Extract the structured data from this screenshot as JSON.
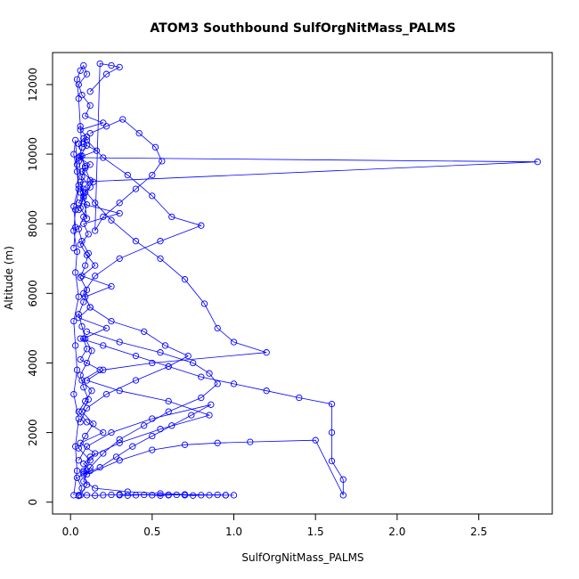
{
  "chart_data": {
    "type": "line",
    "title": "ATOM3 Southbound SulfOrgNitMass_PALMS",
    "xlabel": "SulfOrgNitMass_PALMS",
    "ylabel": "Altitude (m)",
    "xlim": [
      -0.11,
      2.95
    ],
    "ylim": [
      -340,
      12920
    ],
    "xticks": [
      0.0,
      0.5,
      1.0,
      1.5,
      2.0,
      2.5
    ],
    "xtick_labels": [
      "0.0",
      "0.5",
      "1.0",
      "1.5",
      "2.0",
      "2.5"
    ],
    "yticks": [
      0,
      2000,
      4000,
      6000,
      8000,
      10000,
      12000
    ],
    "ytick_labels": [
      "0",
      "2000",
      "4000",
      "6000",
      "8000",
      "10000",
      "12000"
    ],
    "grid": false,
    "legend": "none",
    "markers": "open-circle",
    "color": "#0000ff",
    "series": [
      {
        "x": [
          0.05,
          0.07,
          0.04,
          0.12,
          0.08,
          0.15,
          0.06,
          0.2,
          0.1,
          0.05,
          0.09,
          0.13,
          0.07,
          0.18,
          0.06,
          0.1,
          0.08,
          0.22,
          0.05,
          0.12,
          0.09,
          0.25,
          0.07,
          0.15,
          0.1,
          0.06,
          0.11,
          0.08,
          0.3,
          0.05,
          0.09,
          0.14,
          0.07,
          0.12,
          0.05,
          0.16,
          0.08,
          0.1,
          0.06,
          0.2,
          0.09,
          0.12,
          0.07,
          0.05,
          0.1,
          0.08,
          0.06,
          0.04,
          0.05,
          0.06,
          0.07,
          0.05
        ],
        "y": [
          180,
          400,
          700,
          900,
          1100,
          1400,
          1700,
          2000,
          2300,
          2600,
          2900,
          3200,
          3500,
          3800,
          4100,
          4400,
          4700,
          5000,
          5300,
          5600,
          5900,
          6200,
          6500,
          6800,
          7100,
          7400,
          7700,
          8000,
          8300,
          8600,
          8900,
          9200,
          9500,
          9700,
          9900,
          10100,
          10300,
          10500,
          10700,
          10900,
          11100,
          11400,
          11700,
          12000,
          12300,
          12550,
          12400,
          12150,
          11600,
          10800,
          10200,
          9800
        ]
      },
      {
        "x": [
          0.06,
          0.1,
          0.08,
          0.12,
          0.05,
          0.09,
          0.14,
          0.07,
          0.11,
          0.08,
          0.06,
          0.1,
          0.13,
          0.09,
          0.07,
          0.05,
          0.08,
          0.1,
          0.06,
          0.09,
          0.11,
          0.07,
          0.05,
          0.08,
          0.1,
          0.06,
          0.12,
          0.09,
          0.07,
          0.05,
          0.08,
          0.1,
          0.06,
          0.09,
          0.07,
          0.12,
          0.08,
          0.06,
          0.1,
          0.05,
          2.86,
          0.06,
          0.08,
          0.05
        ],
        "y": [
          200,
          500,
          850,
          1200,
          1550,
          1900,
          2250,
          2600,
          2950,
          3300,
          3650,
          4000,
          4350,
          4700,
          5050,
          5400,
          5750,
          6100,
          6450,
          6800,
          7150,
          7500,
          7850,
          8200,
          8550,
          8900,
          9250,
          9600,
          9950,
          10300,
          10450,
          10250,
          9950,
          9650,
          9350,
          9050,
          8750,
          8450,
          8150,
          9900,
          9780,
          9200,
          8800,
          8400
        ]
      },
      {
        "x": [
          0.08,
          0.15,
          0.25,
          0.4,
          0.55,
          0.7,
          0.82,
          0.9,
          1.0,
          1.2,
          0.5,
          0.2,
          0.1,
          0.3,
          0.6,
          0.85,
          0.55,
          0.3,
          0.12,
          0.08
        ],
        "y": [
          9000,
          8600,
          8100,
          7500,
          7000,
          6400,
          5700,
          5000,
          4600,
          4300,
          4000,
          3800,
          3500,
          3200,
          2900,
          2500,
          2100,
          1700,
          1300,
          900
        ]
      },
      {
        "x": [
          0.1,
          0.2,
          0.35,
          0.5,
          0.62,
          0.8,
          0.55,
          0.3,
          0.15,
          0.08,
          0.12,
          0.25,
          0.45,
          0.58,
          0.72,
          0.6,
          0.4,
          0.22,
          0.1,
          0.06
        ],
        "y": [
          10400,
          9900,
          9400,
          8800,
          8200,
          7950,
          7500,
          7000,
          6500,
          6000,
          5600,
          5200,
          4900,
          4500,
          4200,
          3900,
          3500,
          3100,
          2700,
          2300
        ]
      },
      {
        "x": [
          0.06,
          0.2,
          0.4,
          0.6,
          0.8,
          1.0,
          1.2,
          1.4,
          1.6,
          1.6,
          1.6,
          1.67,
          1.67,
          1.5,
          1.1,
          0.9,
          0.7,
          0.5,
          0.3,
          0.1
        ],
        "y": [
          4700,
          4500,
          4200,
          3900,
          3600,
          3400,
          3200,
          3000,
          2820,
          2000,
          1180,
          650,
          200,
          1780,
          1730,
          1700,
          1650,
          1500,
          1200,
          800
        ]
      },
      {
        "x": [
          0.1,
          0.3,
          0.55,
          0.75,
          0.85,
          0.9,
          0.8,
          0.6,
          0.45,
          0.3,
          0.2,
          0.12,
          0.08,
          0.15,
          0.35,
          0.55,
          0.7,
          0.95,
          0.6,
          0.3
        ],
        "y": [
          4900,
          4600,
          4300,
          4000,
          3700,
          3400,
          3000,
          2600,
          2200,
          1800,
          1400,
          1000,
          600,
          400,
          300,
          250,
          220,
          200,
          210,
          220
        ]
      },
      {
        "x": [
          0.02,
          0.04,
          0.03,
          0.05,
          0.02,
          0.04,
          0.03,
          0.02,
          0.05,
          0.03,
          0.04,
          0.02,
          0.03,
          0.05,
          0.04,
          0.02,
          0.03,
          0.04,
          0.05,
          0.02,
          0.03,
          0.02
        ],
        "y": [
          200,
          900,
          1600,
          2400,
          3100,
          3800,
          4500,
          5200,
          5900,
          6600,
          7200,
          7800,
          8400,
          9000,
          9500,
          10000,
          10400,
          9700,
          9100,
          8500,
          7900,
          7300
        ]
      },
      {
        "x": [
          0.12,
          0.22,
          0.32,
          0.42,
          0.52,
          0.56,
          0.5,
          0.4,
          0.3,
          0.2,
          0.15,
          0.18,
          0.25,
          0.3,
          0.22,
          0.12
        ],
        "y": [
          10600,
          10800,
          11000,
          10600,
          10200,
          9800,
          9400,
          9000,
          8600,
          8200,
          7800,
          12600,
          12550,
          12500,
          12300,
          11800
        ]
      },
      {
        "x": [
          0.05,
          0.1,
          0.15,
          0.2,
          0.25,
          0.3,
          0.35,
          0.4,
          0.45,
          0.5,
          0.55,
          0.6,
          0.65,
          0.7,
          0.75,
          0.8,
          0.85,
          0.9,
          0.95,
          1.0
        ],
        "y": [
          200,
          200,
          190,
          200,
          210,
          200,
          190,
          200,
          210,
          200,
          190,
          200,
          210,
          200,
          190,
          200,
          200,
          210,
          200,
          200
        ]
      },
      {
        "x": [
          0.08,
          0.18,
          0.28,
          0.38,
          0.5,
          0.62,
          0.74,
          0.86,
          0.5,
          0.25,
          0.1,
          0.05
        ],
        "y": [
          800,
          1000,
          1300,
          1600,
          1900,
          2200,
          2500,
          2800,
          2400,
          2000,
          1600,
          1200
        ]
      }
    ]
  }
}
